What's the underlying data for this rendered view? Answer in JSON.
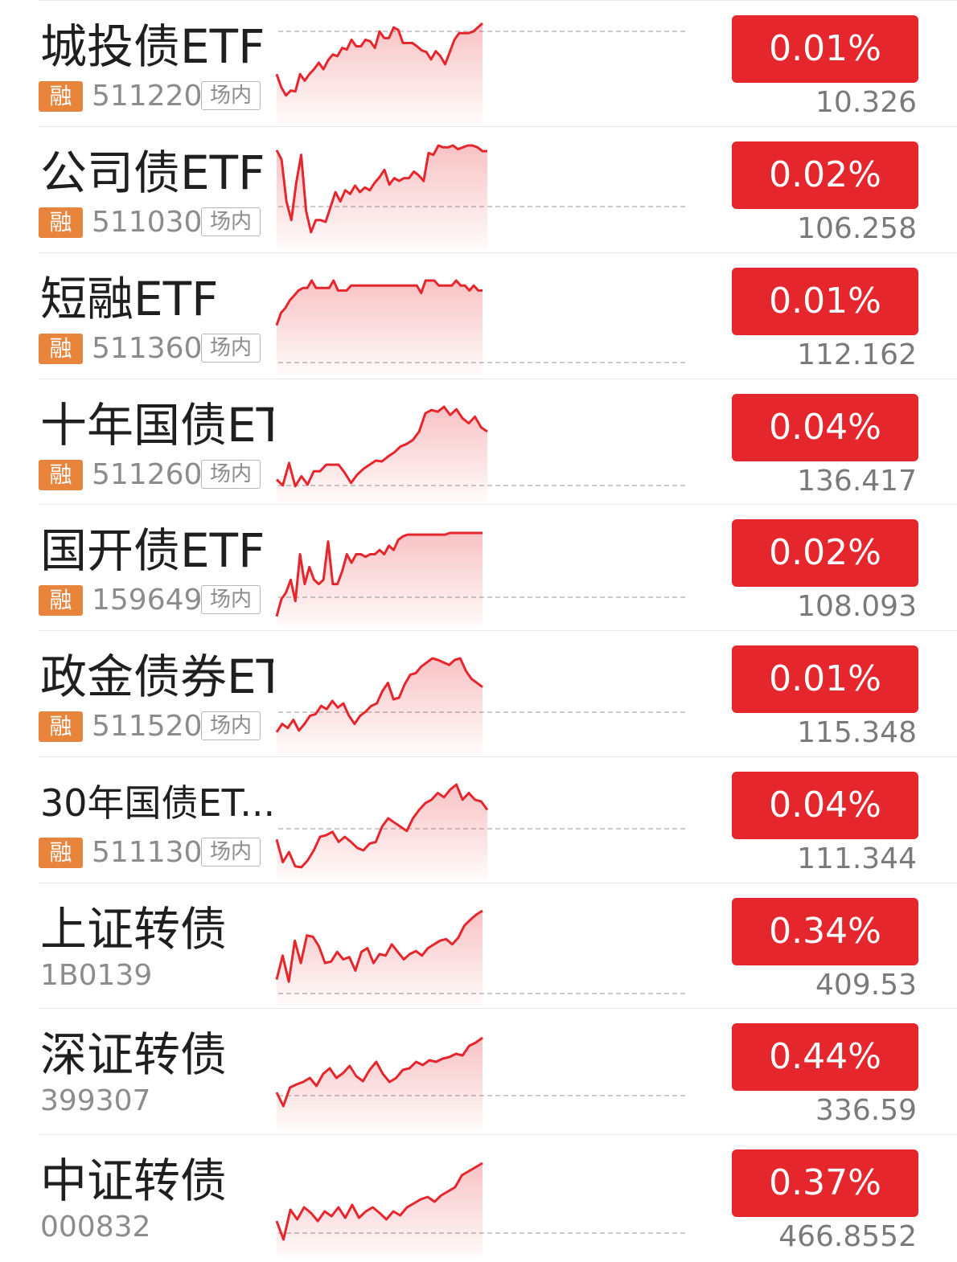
{
  "colors": {
    "up": "#e5262d",
    "tag_rong": "#e8843c",
    "code_gray": "#8c8c8c",
    "name": "#1f1f1f"
  },
  "rows": [
    {
      "name": "城投债ETF",
      "rong": "融",
      "code": "511220",
      "market": "场内",
      "change": "0.01%",
      "price": "10.326",
      "spark": [
        0.62,
        0.78,
        0.88,
        0.82,
        0.83,
        0.62,
        0.7,
        0.62,
        0.56,
        0.48,
        0.56,
        0.45,
        0.38,
        0.4,
        0.3,
        0.32,
        0.2,
        0.28,
        0.28,
        0.2,
        0.22,
        0.3,
        0.1,
        0.18,
        0.18,
        0.05,
        0.08,
        0.24,
        0.24,
        0.24,
        0.28,
        0.33,
        0.35,
        0.44,
        0.34,
        0.4,
        0.5,
        0.35,
        0.2,
        0.12,
        0.12,
        0.12,
        0.1,
        0.05,
        0.0
      ]
    },
    {
      "name": "公司债ETF",
      "rong": "融",
      "code": "511030",
      "market": "场内",
      "change": "0.02%",
      "price": "106.258",
      "spark": [
        0.05,
        0.15,
        0.6,
        0.8,
        0.4,
        0.1,
        0.7,
        0.93,
        0.8,
        0.8,
        0.82,
        0.66,
        0.5,
        0.6,
        0.48,
        0.52,
        0.43,
        0.5,
        0.45,
        0.48,
        0.4,
        0.34,
        0.26,
        0.42,
        0.35,
        0.38,
        0.35,
        0.35,
        0.28,
        0.32,
        0.38,
        0.08,
        0.1,
        0.0,
        0.02,
        0.02,
        0.0,
        0.04,
        0.02,
        0.0,
        0.0,
        0.02,
        0.06,
        0.06
      ]
    },
    {
      "name": "短融ETF",
      "rong": "融",
      "code": "511360",
      "market": "场内",
      "change": "0.01%",
      "price": "112.162",
      "spark": [
        0.9,
        0.65,
        0.55,
        0.4,
        0.3,
        0.2,
        0.15,
        0.15,
        0.0,
        0.15,
        0.15,
        0.15,
        0.15,
        0.0,
        0.2,
        0.2,
        0.2,
        0.1,
        0.1,
        0.1,
        0.1,
        0.1,
        0.1,
        0.1,
        0.1,
        0.1,
        0.1,
        0.1,
        0.1,
        0.1,
        0.1,
        0.1,
        0.1,
        0.25,
        0.0,
        0.0,
        0.0,
        0.1,
        0.1,
        0.1,
        0.1,
        0.0,
        0.1,
        0.1,
        0.2,
        0.1,
        0.2,
        0.2
      ]
    },
    {
      "name": "十年国债ETF",
      "rong": "融",
      "code": "511260",
      "market": "场内",
      "change": "0.04%",
      "price": "136.417",
      "spark": [
        0.88,
        0.95,
        0.68,
        0.96,
        0.84,
        0.94,
        0.78,
        0.78,
        0.7,
        0.7,
        0.7,
        0.8,
        0.92,
        0.82,
        0.75,
        0.7,
        0.65,
        0.66,
        0.6,
        0.55,
        0.48,
        0.45,
        0.4,
        0.3,
        0.08,
        0.04,
        0.06,
        0.0,
        0.1,
        0.03,
        0.14,
        0.2,
        0.12,
        0.25,
        0.3
      ]
    },
    {
      "name": "国开债ETF",
      "rong": "融",
      "code": "159649",
      "market": "场内",
      "change": "0.02%",
      "price": "108.093",
      "spark": [
        0.98,
        0.78,
        0.7,
        0.55,
        0.8,
        0.25,
        0.6,
        0.4,
        0.55,
        0.6,
        0.55,
        0.1,
        0.6,
        0.6,
        0.45,
        0.25,
        0.35,
        0.25,
        0.25,
        0.28,
        0.25,
        0.25,
        0.2,
        0.25,
        0.15,
        0.2,
        0.08,
        0.04,
        0.02,
        0.02,
        0.02,
        0.02,
        0.02,
        0.02,
        0.02,
        0.02,
        0.02,
        0.0,
        0.0,
        0.0,
        0.0,
        0.0,
        0.0,
        0.0,
        0.0
      ]
    },
    {
      "name": "政金债券ETF",
      "rong": "融",
      "code": "511520",
      "market": "场内",
      "change": "0.01%",
      "price": "115.348",
      "spark": [
        0.9,
        0.8,
        0.85,
        0.75,
        0.88,
        0.8,
        0.7,
        0.68,
        0.58,
        0.62,
        0.52,
        0.6,
        0.55,
        0.7,
        0.8,
        0.7,
        0.65,
        0.58,
        0.55,
        0.4,
        0.3,
        0.5,
        0.48,
        0.32,
        0.2,
        0.18,
        0.1,
        0.05,
        0.0,
        0.02,
        0.05,
        0.08,
        0.02,
        0.0,
        0.15,
        0.25,
        0.3,
        0.35
      ]
    },
    {
      "name": "30年国债ET...",
      "rong": "融",
      "code": "511130",
      "market": "场内",
      "change": "0.04%",
      "price": "111.344",
      "spark": [
        0.65,
        0.92,
        0.8,
        0.97,
        0.98,
        0.9,
        0.78,
        0.62,
        0.6,
        0.56,
        0.68,
        0.62,
        0.68,
        0.75,
        0.78,
        0.7,
        0.68,
        0.5,
        0.4,
        0.45,
        0.5,
        0.55,
        0.4,
        0.3,
        0.22,
        0.18,
        0.1,
        0.15,
        0.06,
        0.0,
        0.18,
        0.1,
        0.18,
        0.2,
        0.3
      ]
    },
    {
      "name": "上证转债",
      "rong": "",
      "code": "1B0139",
      "market": "",
      "change": "0.34%",
      "price": "409.53",
      "spark": [
        0.92,
        0.6,
        0.95,
        0.4,
        0.7,
        0.33,
        0.35,
        0.48,
        0.7,
        0.68,
        0.55,
        0.65,
        0.62,
        0.8,
        0.55,
        0.5,
        0.7,
        0.58,
        0.6,
        0.45,
        0.55,
        0.65,
        0.58,
        0.54,
        0.6,
        0.5,
        0.45,
        0.4,
        0.38,
        0.45,
        0.36,
        0.2,
        0.12,
        0.05,
        0.0
      ]
    },
    {
      "name": "深证转债",
      "rong": "",
      "code": "399307",
      "market": "",
      "change": "0.44%",
      "price": "336.59",
      "spark": [
        0.68,
        0.85,
        0.62,
        0.58,
        0.55,
        0.5,
        0.6,
        0.45,
        0.38,
        0.5,
        0.44,
        0.35,
        0.48,
        0.54,
        0.4,
        0.3,
        0.45,
        0.55,
        0.5,
        0.4,
        0.38,
        0.3,
        0.34,
        0.28,
        0.3,
        0.26,
        0.24,
        0.2,
        0.22,
        0.1,
        0.06,
        0.0
      ]
    },
    {
      "name": "中证转债",
      "rong": "",
      "code": "000832",
      "market": "",
      "change": "0.37%",
      "price": "466.8552",
      "spark": [
        0.72,
        0.95,
        0.58,
        0.7,
        0.55,
        0.62,
        0.72,
        0.6,
        0.66,
        0.55,
        0.68,
        0.52,
        0.68,
        0.6,
        0.55,
        0.62,
        0.7,
        0.6,
        0.65,
        0.55,
        0.5,
        0.45,
        0.42,
        0.48,
        0.4,
        0.35,
        0.3,
        0.15,
        0.1,
        0.05,
        0.0
      ]
    }
  ]
}
